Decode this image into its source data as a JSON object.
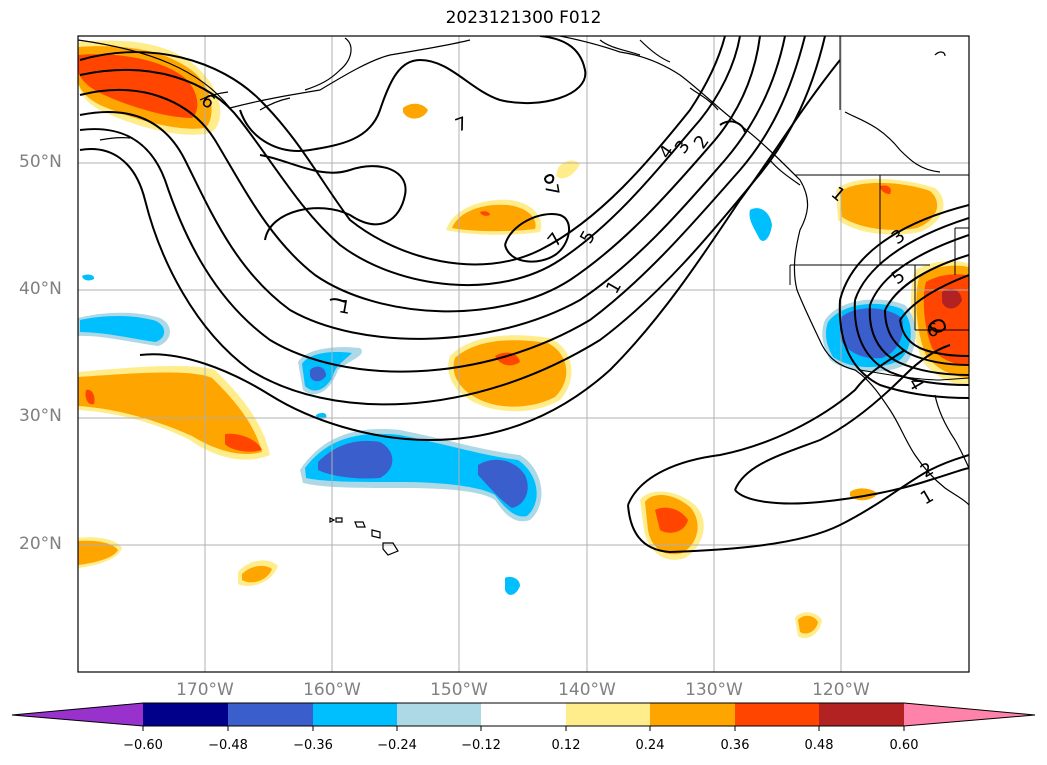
{
  "title": "2023121300 F012",
  "axes": {
    "latitude_labels": [
      "50°N",
      "40°N",
      "30°N",
      "20°N"
    ],
    "longitude_labels": [
      "170°W",
      "160°W",
      "150°W",
      "140°W",
      "130°W",
      "120°W"
    ]
  },
  "colorbar": {
    "tick_labels": [
      "−0.60",
      "−0.48",
      "−0.36",
      "−0.24",
      "−0.12",
      "0.12",
      "0.24",
      "0.36",
      "0.48",
      "0.60"
    ],
    "colors": [
      "#9932CC",
      "#00008B",
      "#3A5FCD",
      "#00BFFF",
      "#ADD8E6",
      "#FFFFFF",
      "#FFEC8B",
      "#FFA500",
      "#FF4500",
      "#B22222",
      "#FF82AB"
    ]
  },
  "contour_labels": [
    "6",
    "7",
    "7",
    "1",
    "7",
    "5",
    "4",
    "3",
    "2",
    "1",
    "1",
    "3",
    "5",
    "6",
    "4",
    "2",
    "1"
  ]
}
